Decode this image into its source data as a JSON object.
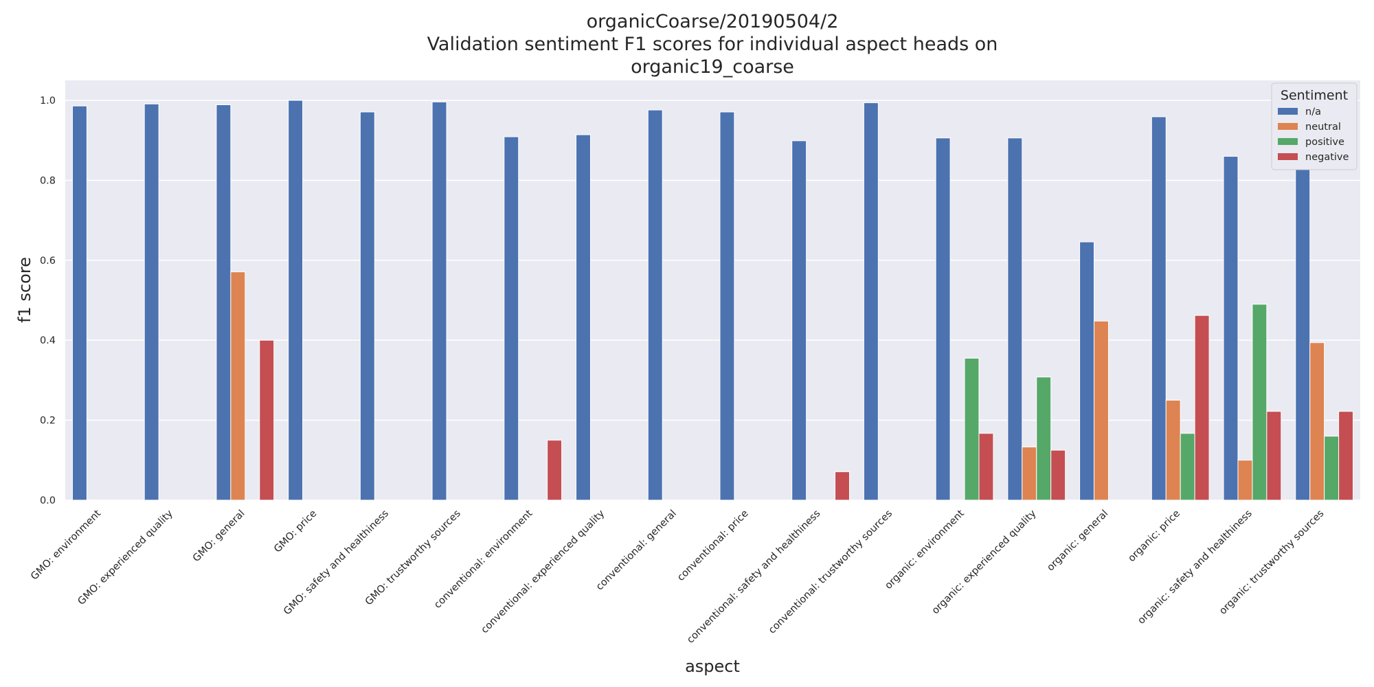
{
  "chart_data": {
    "type": "bar",
    "title": [
      "organicCoarse/20190504/2",
      "Validation sentiment F1 scores for individual aspect heads on",
      "organic19_coarse"
    ],
    "xlabel": "aspect",
    "ylabel": "f1 score",
    "ylim": [
      0,
      1.05
    ],
    "yticks": [
      0.0,
      0.2,
      0.4,
      0.6,
      0.8,
      1.0
    ],
    "ytick_labels": [
      "0.0",
      "0.2",
      "0.4",
      "0.6",
      "0.8",
      "1.0"
    ],
    "grid": true,
    "legend": {
      "title": "Sentiment",
      "placement": "top-right"
    },
    "categories": [
      "GMO: environment",
      "GMO: experienced quality",
      "GMO: general",
      "GMO: price",
      "GMO: safety and healthiness",
      "GMO: trustworthy sources",
      "conventional: environment",
      "conventional: experienced quality",
      "conventional: general",
      "conventional: price",
      "conventional: safety and healthiness",
      "conventional: trustworthy sources",
      "organic: environment",
      "organic: experienced quality",
      "organic: general",
      "organic: price",
      "organic: safety and healthiness",
      "organic: trustworthy sources"
    ],
    "series": [
      {
        "name": "n/a",
        "color": "#4c72b0",
        "values": [
          0.986,
          0.991,
          0.989,
          1.0,
          0.971,
          0.996,
          0.909,
          0.914,
          0.976,
          0.971,
          0.899,
          0.994,
          0.906,
          0.906,
          0.646,
          0.959,
          0.86,
          0.86
        ]
      },
      {
        "name": "neutral",
        "color": "#dd8452",
        "values": [
          0,
          0,
          0.571,
          0,
          0,
          0,
          0,
          0,
          0,
          0,
          0,
          0,
          0,
          0.133,
          0.448,
          0.25,
          0.1,
          0.394
        ]
      },
      {
        "name": "positive",
        "color": "#55a868",
        "values": [
          0,
          0,
          0,
          0,
          0,
          0,
          0,
          0,
          0,
          0,
          0,
          0,
          0.355,
          0.308,
          0,
          0.167,
          0.49,
          0.16
        ]
      },
      {
        "name": "negative",
        "color": "#c44e52",
        "values": [
          0,
          0,
          0.4,
          0,
          0,
          0,
          0.15,
          0,
          0,
          0,
          0.071,
          0,
          0.167,
          0.125,
          0,
          0.462,
          0.222,
          0.222
        ]
      }
    ],
    "colors": {
      "plot_background": "#eaeaf2",
      "gridline": "#ffffff",
      "text": "#262626",
      "legend_background": "#eaeaf2",
      "legend_border": "#cccccc"
    }
  }
}
